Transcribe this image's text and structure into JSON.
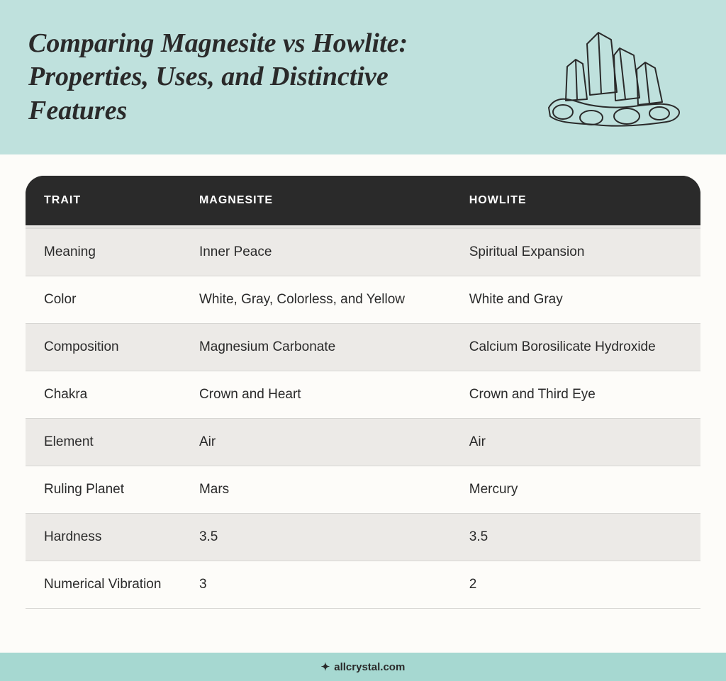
{
  "colors": {
    "header_bg": "#bfe1dd",
    "page_bg": "#fdfcf9",
    "table_header_bg": "#2a2a2a",
    "table_header_text": "#ffffff",
    "row_odd_bg": "#eceae7",
    "row_even_bg": "#fdfcf9",
    "row_border": "#d7d6d3",
    "text": "#2a2a2a",
    "footer_bg": "#a6d8d1",
    "crystal_stroke": "#2a2a2a"
  },
  "typography": {
    "title_fontsize": 38,
    "header_fontsize": 16,
    "cell_fontsize": 19,
    "footer_fontsize": 15
  },
  "header": {
    "title": "Comparing Magnesite vs Howlite: Properties, Uses, and Distinctive Features"
  },
  "table": {
    "type": "table",
    "columns": [
      "TRAIT",
      "MAGNESITE",
      "HOWLITE"
    ],
    "rows": [
      [
        "Meaning",
        "Inner Peace",
        "Spiritual Expansion"
      ],
      [
        "Color",
        "White, Gray, Colorless, and Yellow",
        "White and Gray"
      ],
      [
        "Composition",
        "Magnesium Carbonate",
        "Calcium Borosilicate Hydroxide"
      ],
      [
        "Chakra",
        "Crown and Heart",
        "Crown and Third Eye"
      ],
      [
        "Element",
        "Air",
        "Air"
      ],
      [
        "Ruling Planet",
        "Mars",
        "Mercury"
      ],
      [
        "Hardness",
        "3.5",
        "3.5"
      ],
      [
        "Numerical Vibration",
        "3",
        "2"
      ]
    ],
    "column_widths_pct": [
      23,
      40,
      37
    ]
  },
  "footer": {
    "site": "allcrystal.com",
    "icon_glyph": "✦"
  }
}
